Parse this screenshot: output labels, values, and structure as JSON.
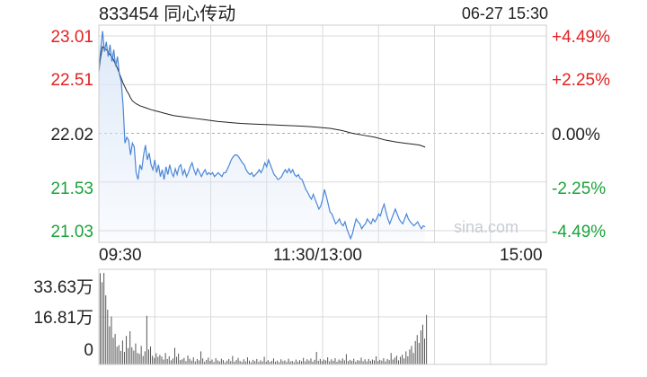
{
  "header": {
    "title": "833454 同心传动",
    "datetime": "06-27 15:30"
  },
  "watermark": "sina.com",
  "colors": {
    "price_line": "#4a86d8",
    "avg_line": "#222222",
    "area_fill": "#dce8f8",
    "up": "#e32222",
    "down": "#1aa33a",
    "grid": "#d9d9d9",
    "volume_bar": "#555555"
  },
  "chart_data": [
    {
      "type": "line",
      "title": "",
      "prev_close": 22.02,
      "ylim": [
        21.03,
        23.01
      ],
      "y_ticks": [
        "23.01",
        "22.51",
        "22.02",
        "21.53",
        "21.03"
      ],
      "y_pct_ticks": [
        "+4.49%",
        "+2.25%",
        "0.00%",
        "-2.25%",
        "-4.49%"
      ],
      "x_ticks": [
        "09:30",
        "11:30/13:00",
        "15:00"
      ],
      "session_minutes": 240,
      "grid": true,
      "series": [
        {
          "key": "price",
          "points": [
            [
              0,
              22.65
            ],
            [
              1,
              22.88
            ],
            [
              2,
              23.06
            ],
            [
              3,
              22.85
            ],
            [
              4,
              22.95
            ],
            [
              5,
              22.8
            ],
            [
              6,
              22.92
            ],
            [
              7,
              22.75
            ],
            [
              8,
              22.87
            ],
            [
              9,
              22.7
            ],
            [
              10,
              22.8
            ],
            [
              11,
              22.62
            ],
            [
              12,
              22.55
            ],
            [
              13,
              22.3
            ],
            [
              14,
              21.92
            ],
            [
              15,
              21.98
            ],
            [
              16,
              21.95
            ],
            [
              17,
              21.8
            ],
            [
              18,
              21.92
            ],
            [
              19,
              21.88
            ],
            [
              20,
              21.62
            ],
            [
              21,
              21.55
            ],
            [
              22,
              21.7
            ],
            [
              23,
              21.65
            ],
            [
              24,
              21.8
            ],
            [
              25,
              21.9
            ],
            [
              26,
              21.75
            ],
            [
              27,
              21.82
            ],
            [
              28,
              21.7
            ],
            [
              29,
              21.65
            ],
            [
              30,
              21.75
            ],
            [
              31,
              21.62
            ],
            [
              32,
              21.7
            ],
            [
              33,
              21.58
            ],
            [
              34,
              21.65
            ],
            [
              35,
              21.55
            ],
            [
              36,
              21.68
            ],
            [
              37,
              21.6
            ],
            [
              38,
              21.7
            ],
            [
              39,
              21.62
            ],
            [
              40,
              21.58
            ],
            [
              41,
              21.66
            ],
            [
              42,
              21.6
            ],
            [
              43,
              21.68
            ],
            [
              44,
              21.7
            ],
            [
              45,
              21.6
            ],
            [
              46,
              21.65
            ],
            [
              47,
              21.58
            ],
            [
              48,
              21.62
            ],
            [
              49,
              21.68
            ],
            [
              50,
              21.72
            ],
            [
              51,
              21.65
            ],
            [
              52,
              21.6
            ],
            [
              53,
              21.66
            ],
            [
              54,
              21.62
            ],
            [
              55,
              21.58
            ],
            [
              56,
              21.62
            ],
            [
              57,
              21.65
            ],
            [
              58,
              21.6
            ],
            [
              59,
              21.62
            ],
            [
              60,
              21.6
            ],
            [
              61,
              21.62
            ],
            [
              62,
              21.58
            ],
            [
              63,
              21.6
            ],
            [
              64,
              21.62
            ],
            [
              65,
              21.6
            ],
            [
              66,
              21.58
            ],
            [
              67,
              21.62
            ],
            [
              68,
              21.62
            ],
            [
              69,
              21.66
            ],
            [
              70,
              21.7
            ],
            [
              71,
              21.75
            ],
            [
              72,
              21.78
            ],
            [
              73,
              21.8
            ],
            [
              74,
              21.8
            ],
            [
              75,
              21.78
            ],
            [
              76,
              21.75
            ],
            [
              77,
              21.72
            ],
            [
              78,
              21.7
            ],
            [
              79,
              21.65
            ],
            [
              80,
              21.62
            ],
            [
              81,
              21.6
            ],
            [
              82,
              21.62
            ],
            [
              83,
              21.58
            ],
            [
              84,
              21.6
            ],
            [
              85,
              21.62
            ],
            [
              86,
              21.65
            ],
            [
              87,
              21.62
            ],
            [
              88,
              21.66
            ],
            [
              89,
              21.72
            ],
            [
              90,
              21.68
            ],
            [
              91,
              21.75
            ],
            [
              92,
              21.7
            ],
            [
              93,
              21.65
            ],
            [
              94,
              21.6
            ],
            [
              95,
              21.58
            ],
            [
              96,
              21.55
            ],
            [
              97,
              21.56
            ],
            [
              98,
              21.58
            ],
            [
              99,
              21.62
            ],
            [
              100,
              21.65
            ],
            [
              101,
              21.62
            ],
            [
              102,
              21.66
            ],
            [
              103,
              21.62
            ],
            [
              104,
              21.65
            ],
            [
              105,
              21.6
            ],
            [
              106,
              21.58
            ],
            [
              107,
              21.6
            ],
            [
              108,
              21.56
            ],
            [
              109,
              21.55
            ],
            [
              110,
              21.5
            ],
            [
              111,
              21.45
            ],
            [
              112,
              21.42
            ],
            [
              113,
              21.38
            ],
            [
              114,
              21.35
            ],
            [
              115,
              21.4
            ],
            [
              116,
              21.35
            ],
            [
              117,
              21.3
            ],
            [
              118,
              21.25
            ],
            [
              119,
              21.28
            ],
            [
              120,
              21.35
            ],
            [
              121,
              21.45
            ],
            [
              122,
              21.38
            ],
            [
              123,
              21.3
            ],
            [
              124,
              21.22
            ],
            [
              125,
              21.2
            ],
            [
              126,
              21.15
            ],
            [
              127,
              21.1
            ],
            [
              128,
              21.12
            ],
            [
              129,
              21.15
            ],
            [
              130,
              21.1
            ],
            [
              131,
              21.08
            ],
            [
              132,
              21.12
            ],
            [
              133,
              21.05
            ],
            [
              134,
              21.0
            ],
            [
              135,
              20.95
            ],
            [
              136,
              21.0
            ],
            [
              137,
              21.08
            ],
            [
              138,
              21.15
            ],
            [
              139,
              21.12
            ],
            [
              140,
              21.1
            ],
            [
              141,
              21.05
            ],
            [
              142,
              21.08
            ],
            [
              143,
              21.1
            ],
            [
              144,
              21.15
            ],
            [
              145,
              21.12
            ],
            [
              146,
              21.1
            ],
            [
              147,
              21.15
            ],
            [
              148,
              21.12
            ],
            [
              149,
              21.15
            ],
            [
              150,
              21.2
            ],
            [
              151,
              21.18
            ],
            [
              152,
              21.25
            ],
            [
              153,
              21.3
            ],
            [
              154,
              21.22
            ],
            [
              155,
              21.15
            ],
            [
              156,
              21.1
            ],
            [
              157,
              21.15
            ],
            [
              158,
              21.2
            ],
            [
              159,
              21.25
            ],
            [
              160,
              21.2
            ],
            [
              161,
              21.15
            ],
            [
              162,
              21.12
            ],
            [
              163,
              21.1
            ],
            [
              164,
              21.15
            ],
            [
              165,
              21.2
            ],
            [
              166,
              21.15
            ],
            [
              167,
              21.12
            ],
            [
              168,
              21.1
            ],
            [
              169,
              21.08
            ],
            [
              170,
              21.1
            ],
            [
              171,
              21.12
            ],
            [
              172,
              21.08
            ],
            [
              173,
              21.05
            ],
            [
              174,
              21.08
            ],
            [
              175,
              21.07
            ]
          ]
        },
        {
          "key": "average",
          "points": [
            [
              0,
              22.65
            ],
            [
              1,
              22.8
            ],
            [
              2,
              22.9
            ],
            [
              3,
              22.88
            ],
            [
              4,
              22.87
            ],
            [
              5,
              22.85
            ],
            [
              6,
              22.82
            ],
            [
              7,
              22.8
            ],
            [
              8,
              22.76
            ],
            [
              9,
              22.72
            ],
            [
              10,
              22.68
            ],
            [
              11,
              22.63
            ],
            [
              12,
              22.58
            ],
            [
              13,
              22.53
            ],
            [
              14,
              22.49
            ],
            [
              15,
              22.45
            ],
            [
              16,
              22.42
            ],
            [
              17,
              22.38
            ],
            [
              18,
              22.35
            ],
            [
              20,
              22.32
            ],
            [
              22,
              22.3
            ],
            [
              25,
              22.28
            ],
            [
              28,
              22.26
            ],
            [
              32,
              22.24
            ],
            [
              36,
              22.22
            ],
            [
              40,
              22.2
            ],
            [
              44,
              22.19
            ],
            [
              48,
              22.18
            ],
            [
              52,
              22.17
            ],
            [
              56,
              22.16
            ],
            [
              60,
              22.15
            ],
            [
              64,
              22.14
            ],
            [
              70,
              22.13
            ],
            [
              76,
              22.12
            ],
            [
              82,
              22.115
            ],
            [
              88,
              22.11
            ],
            [
              94,
              22.105
            ],
            [
              100,
              22.1
            ],
            [
              106,
              22.095
            ],
            [
              112,
              22.09
            ],
            [
              118,
              22.08
            ],
            [
              124,
              22.07
            ],
            [
              130,
              22.05
            ],
            [
              136,
              22.02
            ],
            [
              142,
              22.0
            ],
            [
              148,
              21.98
            ],
            [
              154,
              21.95
            ],
            [
              160,
              21.93
            ],
            [
              164,
              21.92
            ],
            [
              168,
              21.91
            ],
            [
              172,
              21.9
            ],
            [
              175,
              21.88
            ]
          ]
        }
      ]
    },
    {
      "type": "bar",
      "title": "",
      "ylim": [
        0,
        33.63
      ],
      "y_ticks": [
        "33.63万",
        "16.81万",
        "0"
      ],
      "unit": "万",
      "grid": true,
      "values": [
        33.5,
        30.2,
        33.6,
        25.4,
        20.1,
        14.0,
        17.6,
        9.8,
        11.2,
        6.5,
        7.1,
        5.0,
        8.8,
        4.6,
        10.5,
        6.0,
        12.2,
        6.3,
        5.1,
        7.7,
        4.2,
        3.9,
        6.8,
        3.1,
        4.8,
        17.9,
        5.5,
        6.6,
        3.2,
        2.4,
        4.1,
        2.8,
        3.5,
        2.9,
        1.8,
        4.2,
        2.0,
        3.0,
        1.5,
        2.2,
        6.1,
        2.8,
        4.0,
        1.6,
        1.9,
        2.4,
        1.2,
        3.3,
        2.1,
        1.4,
        2.6,
        1.1,
        2.0,
        1.5,
        4.8,
        2.2,
        1.0,
        1.7,
        2.5,
        1.3,
        1.8,
        0.9,
        2.3,
        1.5,
        1.1,
        2.1,
        1.6,
        0.8,
        1.4,
        2.0,
        1.2,
        3.1,
        1.0,
        1.6,
        2.4,
        1.3,
        0.9,
        1.9,
        1.1,
        2.6,
        1.4,
        0.8,
        1.7,
        1.2,
        2.0,
        0.9,
        1.5,
        1.1,
        2.8,
        1.0,
        1.6,
        0.9,
        1.3,
        2.2,
        1.0,
        1.4,
        0.8,
        1.9,
        1.2,
        1.5,
        0.9,
        2.1,
        1.1,
        1.3,
        0.8,
        1.8,
        1.0,
        1.6,
        1.2,
        2.4,
        1.1,
        1.9,
        1.4,
        2.2,
        1.0,
        1.7,
        4.6,
        1.3,
        2.0,
        1.2,
        1.8,
        1.5,
        2.6,
        1.1,
        1.9,
        1.3,
        2.3,
        1.0,
        1.8,
        1.4,
        2.2,
        1.5,
        3.8,
        1.2,
        1.7,
        1.3,
        2.1,
        1.0,
        1.6,
        1.4,
        2.5,
        1.2,
        1.9,
        1.1,
        2.0,
        1.3,
        1.8,
        1.5,
        3.0,
        1.2,
        1.7,
        1.4,
        2.3,
        1.1,
        2.0,
        1.6,
        4.2,
        1.8,
        2.5,
        3.2,
        1.5,
        2.8,
        3.6,
        2.2,
        4.8,
        3.0,
        5.5,
        6.8,
        4.2,
        8.6,
        10.8,
        7.9,
        12.5,
        14.6,
        9.5,
        18.2
      ]
    }
  ]
}
